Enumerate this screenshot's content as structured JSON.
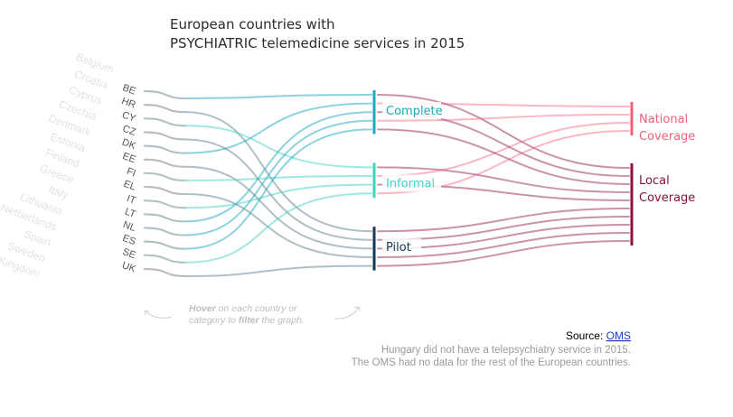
{
  "title": {
    "line1": "European countries with",
    "line2": "PSYCHIATRIC telemedicine services in 2015"
  },
  "hint": {
    "w1": "Hover",
    "w2": " on each country or",
    "w3": "category to ",
    "w4": "filter",
    "w5": " the graph."
  },
  "source": {
    "label": "Source: ",
    "link": "OMS"
  },
  "notes": [
    "Hungary did not have a telepsychiatry service in 2015.",
    "The OMS had no data for the rest of the European countries."
  ],
  "colors": {
    "complete": "#1ba8bf",
    "informal": "#3fd3c4",
    "pilot": "#0f3a52",
    "national": "#f25f7a",
    "local": "#8b1040"
  },
  "chart_data": {
    "type": "sankey",
    "countries": [
      {
        "code": "BE",
        "name": "Belgium",
        "service": "Complete",
        "coverage": "Local"
      },
      {
        "code": "HR",
        "name": "Croatia",
        "service": "Pilot",
        "coverage": "Local"
      },
      {
        "code": "CY",
        "name": "Cyprus",
        "service": "Informal",
        "coverage": "Local"
      },
      {
        "code": "CZ",
        "name": "Czechia",
        "service": "Pilot",
        "coverage": "Local"
      },
      {
        "code": "DK",
        "name": "Denmark",
        "service": "Complete",
        "coverage": "National"
      },
      {
        "code": "EE",
        "name": "Estonia",
        "service": "Pilot",
        "coverage": "Local"
      },
      {
        "code": "FI",
        "name": "Finland",
        "service": "Informal",
        "coverage": "National"
      },
      {
        "code": "EL",
        "name": "Greece",
        "service": "Pilot",
        "coverage": "Local"
      },
      {
        "code": "IT",
        "name": "Italy",
        "service": "Informal",
        "coverage": "Local"
      },
      {
        "code": "LT",
        "name": "Lithuania",
        "service": "Complete",
        "coverage": "Local"
      },
      {
        "code": "NL",
        "name": "Netherlands",
        "service": "Complete",
        "coverage": "National"
      },
      {
        "code": "ES",
        "name": "Spain",
        "service": "Complete",
        "coverage": "Local"
      },
      {
        "code": "SE",
        "name": "Sweden",
        "service": "Informal",
        "coverage": "National"
      },
      {
        "code": "UK",
        "name": "United Kingdom",
        "service": "Pilot",
        "coverage": "Local"
      }
    ],
    "service_categories": [
      "Complete",
      "Informal",
      "Pilot"
    ],
    "coverage_categories": [
      {
        "key": "National",
        "label": [
          "National",
          "Coverage"
        ]
      },
      {
        "key": "Local",
        "label": [
          "Local",
          "Coverage"
        ]
      }
    ]
  }
}
